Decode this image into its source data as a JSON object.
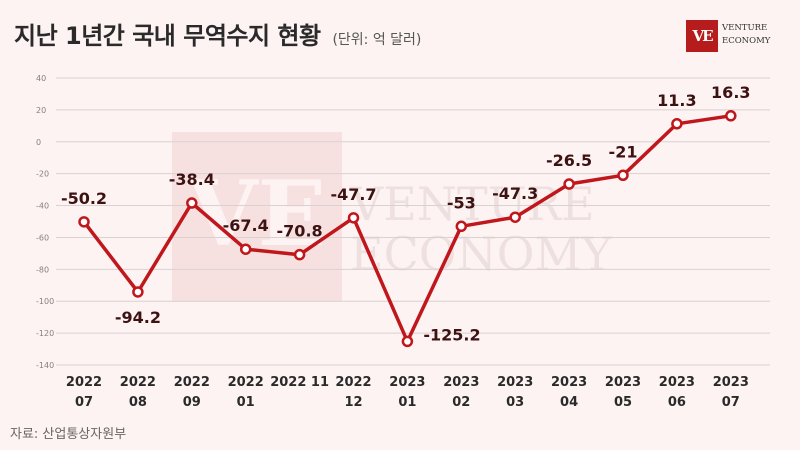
{
  "header": {
    "title": "지난 1년간 국내 무역수지 현황",
    "unit": "(단위: 억 달러)"
  },
  "logo": {
    "mark": "VE",
    "line1": "VENTURE",
    "line2": "ECONOMY"
  },
  "watermark": {
    "mark": "VE",
    "line1": "VENTURE",
    "line2": "ECONOMY"
  },
  "source": "자료: 산업통상자원부",
  "colors": {
    "line": "#c0171c",
    "label": "#3d1212",
    "grid": "#d9d2d2",
    "background": "#fdf3f2"
  },
  "chart_data": {
    "type": "line",
    "categories": [
      [
        "2022",
        "07"
      ],
      [
        "2022",
        "08"
      ],
      [
        "2022",
        "09"
      ],
      [
        "2022",
        "01"
      ],
      [
        "2022 11",
        ""
      ],
      [
        "2022",
        "12"
      ],
      [
        "2023",
        "01"
      ],
      [
        "2023",
        "02"
      ],
      [
        "2023",
        "03"
      ],
      [
        "2023",
        "04"
      ],
      [
        "2023",
        "05"
      ],
      [
        "2023",
        "06"
      ],
      [
        "2023",
        "07"
      ]
    ],
    "values": [
      -50.2,
      -94.2,
      -38.4,
      -67.4,
      -70.8,
      -47.7,
      -125.2,
      -53,
      -47.3,
      -26.5,
      -21,
      11.3,
      16.3
    ],
    "data_labels": [
      "-50.2",
      "-94.2",
      "-38.4",
      "-67.4",
      "-70.8",
      "-47.7",
      "-125.2",
      "-53",
      "-47.3",
      "-26.5",
      "-21",
      "11.3",
      "16.3"
    ],
    "label_positions": [
      "above",
      "below",
      "above",
      "above",
      "above",
      "above",
      "right",
      "above",
      "above",
      "above",
      "above",
      "above",
      "above"
    ],
    "ylim": [
      -140,
      40
    ],
    "yticks": [
      40,
      20,
      0,
      -20,
      -40,
      -60,
      -80,
      -100,
      -120,
      -140
    ],
    "grid": true,
    "legend": false,
    "title": "지난 1년간 국내 무역수지 현황",
    "ylabel": "",
    "xlabel": ""
  }
}
